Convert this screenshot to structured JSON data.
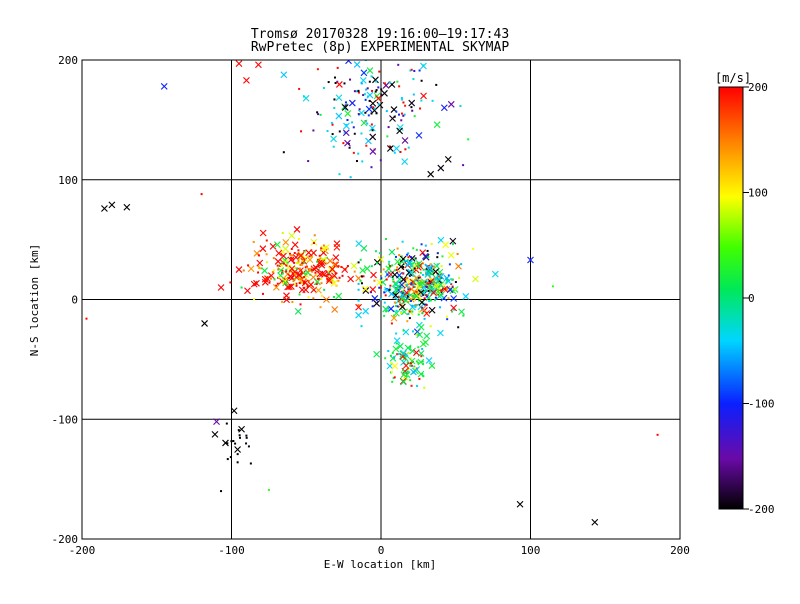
{
  "chart_data": {
    "type": "scatter",
    "title": "Tromsø 20170328 19:16:00–19:17:43",
    "subtitle": "RwPretec (8p) EXPERIMENTAL SKYMAP",
    "xlabel": "E-W location [km]",
    "ylabel": "N-S location [km]",
    "xlim": [
      -200,
      200
    ],
    "ylim": [
      -200,
      200
    ],
    "xticks": [
      -200,
      -100,
      0,
      100,
      200
    ],
    "yticks": [
      -200,
      -100,
      0,
      100,
      200
    ],
    "gridlines_x": [
      -100,
      0,
      100
    ],
    "gridlines_y": [
      -100,
      0,
      100
    ],
    "colorbar": {
      "label": "[m/s]",
      "min": -200,
      "max": 200,
      "ticks": [
        -200,
        -100,
        0,
        100,
        200
      ],
      "colormap": "rainbow: black-purple-blue-cyan-green-yellow-orange-red"
    },
    "markers": [
      "x (large echoes)",
      "dot (small echoes)"
    ],
    "clusters": [
      {
        "name": "north",
        "x_range": [
          -50,
          70
        ],
        "y_range": [
          110,
          200
        ],
        "velocity_mix": [
          "black",
          "blue",
          "cyan",
          "green"
        ]
      },
      {
        "name": "west",
        "x_range": [
          -95,
          -20
        ],
        "y_range": [
          0,
          60
        ],
        "velocity_mix": [
          "red",
          "orange"
        ]
      },
      {
        "name": "center-east",
        "x_range": [
          0,
          70
        ],
        "y_range": [
          -30,
          60
        ],
        "velocity_mix": [
          "green",
          "cyan",
          "blue",
          "black",
          "orange",
          "red"
        ]
      },
      {
        "name": "south",
        "x_range": [
          0,
          40
        ],
        "y_range": [
          -80,
          -30
        ],
        "velocity_mix": [
          "green",
          "red"
        ]
      },
      {
        "name": "southwest",
        "x_range": [
          -110,
          -75
        ],
        "y_range": [
          -140,
          -90
        ],
        "velocity_mix": [
          "black"
        ]
      }
    ],
    "labeled_points": [
      {
        "x": -145,
        "y": 178,
        "v": -100,
        "marker": "x"
      },
      {
        "x": -185,
        "y": 76,
        "v": -200,
        "marker": "x"
      },
      {
        "x": -180,
        "y": 79,
        "v": -200,
        "marker": "x"
      },
      {
        "x": -170,
        "y": 77,
        "v": -200,
        "marker": "x"
      },
      {
        "x": -120,
        "y": 88,
        "v": 200,
        "marker": "dot"
      },
      {
        "x": -118,
        "y": -20,
        "v": -200,
        "marker": "x"
      },
      {
        "x": -110,
        "y": -102,
        "v": -150,
        "marker": "x"
      },
      {
        "x": -107,
        "y": 10,
        "v": 200,
        "marker": "x"
      },
      {
        "x": -95,
        "y": 197,
        "v": 200,
        "marker": "x"
      },
      {
        "x": -90,
        "y": 183,
        "v": 200,
        "marker": "x"
      },
      {
        "x": -82,
        "y": 196,
        "v": 200,
        "marker": "x"
      },
      {
        "x": -95,
        "y": 25,
        "v": 200,
        "marker": "x"
      },
      {
        "x": 100,
        "y": 33,
        "v": -100,
        "marker": "x"
      },
      {
        "x": 115,
        "y": 11,
        "v": 40,
        "marker": "dot"
      },
      {
        "x": 47,
        "y": 163,
        "v": -150,
        "marker": "x"
      },
      {
        "x": 45,
        "y": 117,
        "v": -200,
        "marker": "x"
      },
      {
        "x": 93,
        "y": -171,
        "v": -200,
        "marker": "x"
      },
      {
        "x": 143,
        "y": -186,
        "v": -200,
        "marker": "x"
      },
      {
        "x": 185,
        "y": -113,
        "v": 200,
        "marker": "dot"
      },
      {
        "x": -197,
        "y": -16,
        "v": 200,
        "marker": "dot"
      },
      {
        "x": -107,
        "y": -160,
        "v": -200,
        "marker": "dot"
      },
      {
        "x": -75,
        "y": -159,
        "v": 40,
        "marker": "dot"
      }
    ]
  }
}
